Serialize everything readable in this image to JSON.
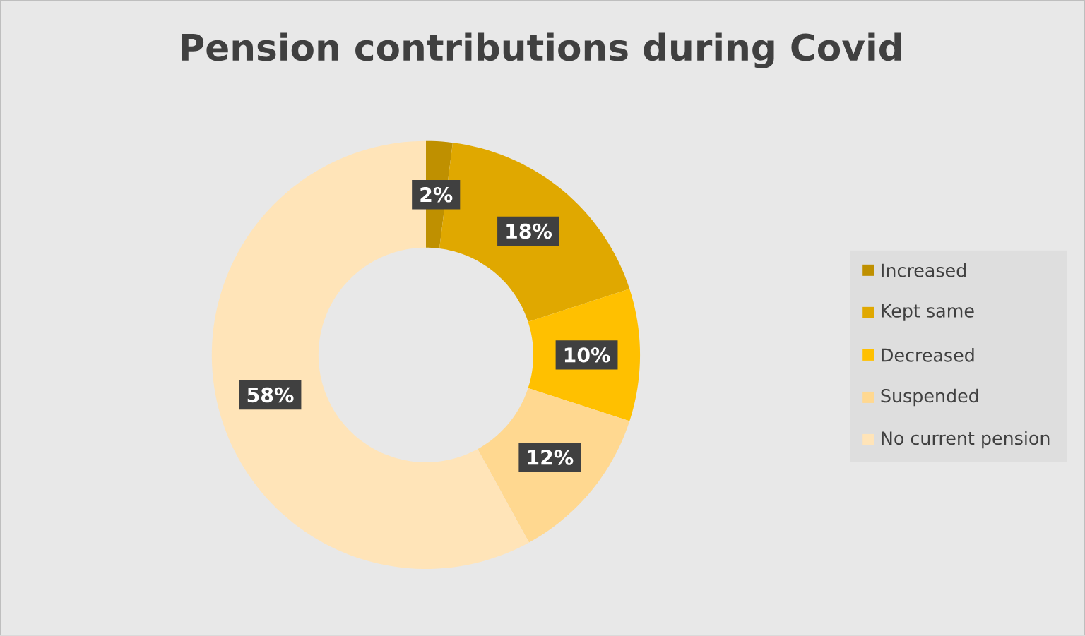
{
  "chart_data": {
    "type": "donut",
    "title": "Pension contributions during Covid",
    "categories": [
      "Increased",
      "Kept same",
      "Decreased",
      "Suspended",
      "No current pension"
    ],
    "values": [
      2,
      18,
      10,
      12,
      58
    ],
    "colors": [
      "#bf9000",
      "#e0a800",
      "#ffc000",
      "#ffd890",
      "#ffe4b8"
    ],
    "value_labels": [
      "2%",
      "18%",
      "10%",
      "12%",
      "58%"
    ],
    "legend": "right"
  }
}
